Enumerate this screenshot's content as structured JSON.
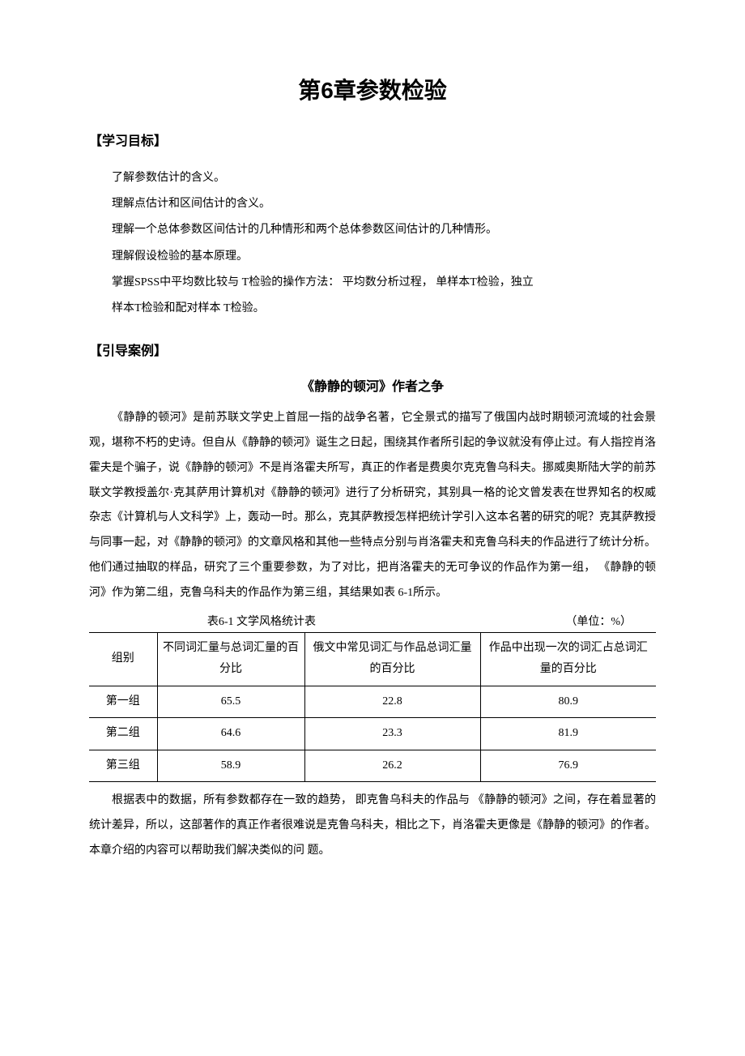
{
  "chapter_title": "第6章参数检验",
  "learning_heading": "【学习目标】",
  "objectives": [
    "了解参数估计的含义。",
    "理解点估计和区间估计的含义。",
    "理解一个总体参数区间估计的几种情形和两个总体参数区间估计的几种情形。",
    "理解假设检验的基本原理。",
    "掌握SPSS中平均数比较与 T检验的操作方法：  平均数分析过程，  单样本T检验，独立",
    "样本T检验和配对样本 T检验。"
  ],
  "case_heading": "【引导案例】",
  "case_title": "《静静的顿河》作者之争",
  "paragraph1": "《静静的顿河》是前苏联文学史上首屈一指的战争名著，它全景式的描写了俄国内战时期顿河流域的社会景观，堪称不朽的史诗。但自从《静静的顿河》诞生之日起，围绕其作者所引起的争议就没有停止过。有人指控肖洛霍夫是个骗子，说《静静的顿河》不是肖洛霍夫所写，真正的作者是费奥尔克克鲁乌科夫。挪威奥斯陆大学的前苏联文学教授盖尔·克其萨用计算机对《静静的顿河》进行了分析研究，其别具一格的论文曾发表在世界知名的权威杂志《计算机与人文科学》上，轰动一时。那么，克其萨教授怎样把统计学引入这本名著的研究的呢？克其萨教授与同事一起，对《静静的顿河》的文章风格和其他一些特点分别与肖洛霍夫和克鲁乌科夫的作品进行了统计分析。他们通过抽取的样品，研究了三个重要参数，为了对比，把肖洛霍夫的无可争议的作品作为第一组，    《静静的顿河》作为第二组，克鲁乌科夫的作品作为第三组，其结果如表    6-1所示。",
  "table": {
    "caption": "表6-1 文学风格统计表",
    "unit": "（单位：%）",
    "columns": [
      "组别",
      "不同词汇量与总词汇量的百分比",
      "俄文中常见词汇与作品总词汇量的百分比",
      "作品中出现一次的词汇占总词汇量的百分比"
    ],
    "col_widths": [
      "12%",
      "26%",
      "31%",
      "31%"
    ],
    "rows": [
      [
        "第一组",
        "65.5",
        "22.8",
        "80.9"
      ],
      [
        "第二组",
        "64.6",
        "23.3",
        "81.9"
      ],
      [
        "第三组",
        "58.9",
        "26.2",
        "76.9"
      ]
    ],
    "border_color": "#000000",
    "background_color": "#ffffff",
    "fontsize": 14
  },
  "paragraph2": "根据表中的数据，所有参数都存在一致的趋势，   即克鲁乌科夫的作品与 《静静的顿河》之间，存在着显著的统计差异，所以，这部著作的真正作者很难说是克鲁乌科夫，相比之下，肖洛霍夫更像是《静静的顿河》的作者。本章介绍的内容可以帮助我们解决类似的问 题。"
}
